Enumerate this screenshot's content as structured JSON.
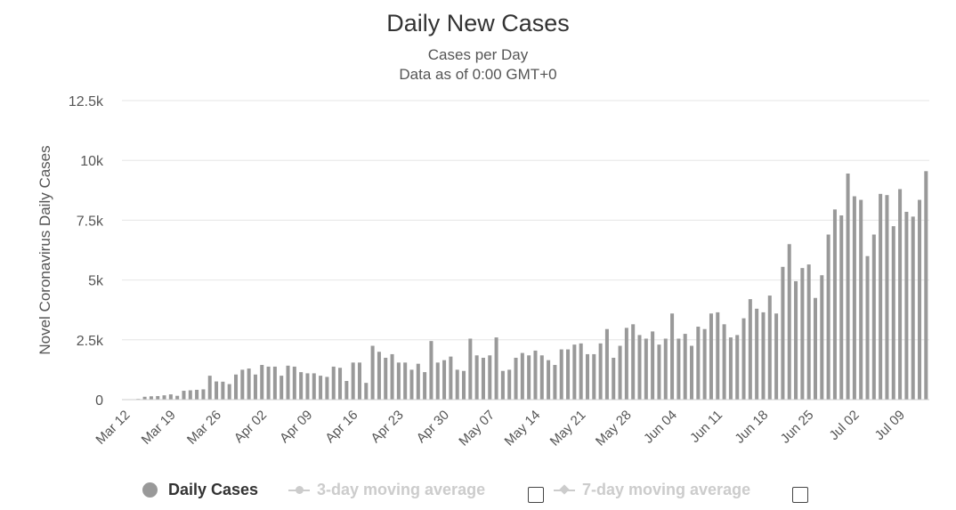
{
  "chart_data": {
    "type": "bar",
    "title": "Daily New Cases",
    "subtitle": [
      "Cases per Day",
      "Data as of 0:00 GMT+0"
    ],
    "ylabel": "Novel Coronavirus Daily Cases",
    "xlabel": "",
    "ylim": [
      0,
      12500
    ],
    "yticks": [
      0,
      2500,
      5000,
      7500,
      10000,
      12500
    ],
    "ytick_labels": [
      "0",
      "2.5k",
      "5k",
      "7.5k",
      "10k",
      "12.5k"
    ],
    "xtick_labels": [
      "Mar 12",
      "Mar 19",
      "Mar 26",
      "Apr 02",
      "Apr 09",
      "Apr 16",
      "Apr 23",
      "Apr 30",
      "May 07",
      "May 14",
      "May 21",
      "May 28",
      "Jun 04",
      "Jun 11",
      "Jun 18",
      "Jun 25",
      "Jul 02",
      "Jul 09"
    ],
    "grid": true,
    "legend_position": "bottom",
    "colors": {
      "bar": "#999999",
      "grid": "#e6e6e6",
      "inactive": "#cccccc"
    },
    "series": [
      {
        "name": "Daily Cases",
        "start_label": "Mar 12",
        "values": [
          5,
          10,
          30,
          120,
          140,
          150,
          180,
          220,
          160,
          370,
          390,
          410,
          430,
          1000,
          760,
          750,
          650,
          1050,
          1250,
          1300,
          1050,
          1450,
          1380,
          1380,
          1000,
          1420,
          1380,
          1150,
          1100,
          1100,
          1000,
          950,
          1380,
          1330,
          780,
          1550,
          1550,
          700,
          2250,
          2000,
          1750,
          1900,
          1550,
          1550,
          1250,
          1500,
          1150,
          2450,
          1550,
          1650,
          1800,
          1250,
          1200,
          2550,
          1850,
          1750,
          1850,
          2600,
          1200,
          1250,
          1750,
          1950,
          1850,
          2050,
          1850,
          1650,
          1450,
          2100,
          2100,
          2300,
          2350,
          1900,
          1900,
          2350,
          2950,
          1750,
          2250,
          3000,
          3150,
          2700,
          2550,
          2850,
          2300,
          2550,
          3600,
          2550,
          2750,
          2250,
          3050,
          2950,
          3600,
          3650,
          3150,
          2600,
          2700,
          3400,
          4200,
          3800,
          3650,
          4350,
          3600,
          5550,
          6500,
          4950,
          5500,
          5650,
          4250,
          5200,
          6900,
          7950,
          7700,
          9450,
          8500,
          8350,
          6000,
          6900,
          8600,
          8550,
          7250,
          8800,
          7850,
          7650,
          8350,
          9550
        ]
      }
    ]
  },
  "legend": {
    "items": [
      {
        "label": "Daily Cases",
        "active": true
      },
      {
        "label": "3-day moving average",
        "active": false
      },
      {
        "label": "7-day moving average",
        "active": false
      }
    ]
  }
}
